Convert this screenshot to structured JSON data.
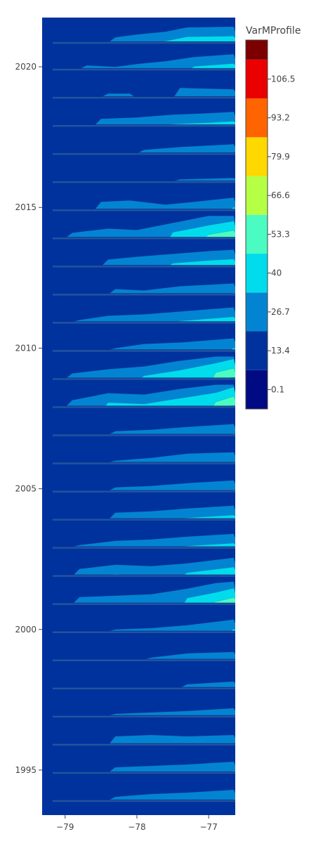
{
  "chart_data": {
    "type": "contour",
    "title": "",
    "xlabel": "",
    "ylabel": "",
    "colorbar_title": "VarMProfile",
    "xlim": [
      -79.32,
      -76.63
    ],
    "ylim": [
      1993.4,
      2021.75
    ],
    "x_ticks": [
      {
        "value": -79,
        "label": "−79"
      },
      {
        "value": -78,
        "label": "−78"
      },
      {
        "value": -77,
        "label": "−77"
      }
    ],
    "y_ticks": [
      {
        "value": 1995,
        "label": "1995"
      },
      {
        "value": 2000,
        "label": "2000"
      },
      {
        "value": 2005,
        "label": "2005"
      },
      {
        "value": 2010,
        "label": "2010"
      },
      {
        "value": 2015,
        "label": "2015"
      },
      {
        "value": 2020,
        "label": "2020"
      }
    ],
    "colorscale": {
      "min": -6.55,
      "max": 119.85,
      "ticks": [
        {
          "value": 0.1,
          "label": "0.1"
        },
        {
          "value": 13.4,
          "label": "13.4"
        },
        {
          "value": 26.7,
          "label": "26.7"
        },
        {
          "value": 40,
          "label": "40"
        },
        {
          "value": 53.3,
          "label": "53.3"
        },
        {
          "value": 66.6,
          "label": "66.6"
        },
        {
          "value": 79.9,
          "label": "79.9"
        },
        {
          "value": 93.2,
          "label": "93.2"
        },
        {
          "value": 106.5,
          "label": "106.5"
        }
      ],
      "bins": [
        {
          "from": -6.55,
          "to": 6.75,
          "color": "#000a82"
        },
        {
          "from": 6.75,
          "to": 20.05,
          "color": "#00329e"
        },
        {
          "from": 20.05,
          "to": 33.35,
          "color": "#0384d2"
        },
        {
          "from": 33.35,
          "to": 46.65,
          "color": "#00dcec"
        },
        {
          "from": 46.65,
          "to": 59.95,
          "color": "#4afcc2"
        },
        {
          "from": 59.95,
          "to": 73.25,
          "color": "#b5ff45"
        },
        {
          "from": 73.25,
          "to": 86.55,
          "color": "#ffd800"
        },
        {
          "from": 86.55,
          "to": 99.85,
          "color": "#ff6400"
        },
        {
          "from": 99.85,
          "to": 113.15,
          "color": "#eb0000"
        },
        {
          "from": 113.15,
          "to": 119.85,
          "color": "#7d0000"
        }
      ]
    },
    "bands": [
      {
        "year": 2021.35,
        "level1": [
          [
            -79.3,
            14
          ],
          [
            -79,
            14
          ],
          [
            -78.6,
            20
          ],
          [
            -78.3,
            26
          ],
          [
            -78,
            30
          ],
          [
            -77.6,
            34
          ],
          [
            -77.3,
            40
          ],
          [
            -76.65,
            41
          ]
        ]
      },
      {
        "year": 2020.4,
        "level1": [
          [
            -79.3,
            14
          ],
          [
            -79,
            18
          ],
          [
            -78.7,
            24
          ],
          [
            -78.3,
            22
          ],
          [
            -78,
            26
          ],
          [
            -77.6,
            30
          ],
          [
            -77.2,
            36
          ],
          [
            -76.65,
            40
          ]
        ]
      },
      {
        "year": 2019.4,
        "level1": [
          [
            -79.3,
            12
          ],
          [
            -78.8,
            16
          ],
          [
            -78.4,
            24
          ],
          [
            -78.1,
            24
          ],
          [
            -77.8,
            20
          ],
          [
            -77.4,
            32
          ],
          [
            -76.65,
            30
          ]
        ]
      },
      {
        "year": 2018.4,
        "level1": [
          [
            -79.3,
            14
          ],
          [
            -78.9,
            20
          ],
          [
            -78.5,
            28
          ],
          [
            -78.0,
            30
          ],
          [
            -77.5,
            34
          ],
          [
            -77.0,
            36
          ],
          [
            -76.65,
            38
          ]
        ]
      },
      {
        "year": 2017.4,
        "level1": [
          [
            -79.3,
            12
          ],
          [
            -78.8,
            14
          ],
          [
            -78.3,
            18
          ],
          [
            -77.9,
            24
          ],
          [
            -77.4,
            28
          ],
          [
            -76.65,
            32
          ]
        ]
      },
      {
        "year": 2016.4,
        "level1": [
          [
            -79.3,
            10
          ],
          [
            -78.8,
            12
          ],
          [
            -78.3,
            14
          ],
          [
            -77.9,
            18
          ],
          [
            -77.4,
            22
          ],
          [
            -76.65,
            24
          ]
        ]
      },
      {
        "year": 2015.4,
        "level1": [
          [
            -79.3,
            14
          ],
          [
            -78.9,
            20
          ],
          [
            -78.5,
            30
          ],
          [
            -78.1,
            32
          ],
          [
            -77.6,
            26
          ],
          [
            -77.2,
            30
          ],
          [
            -76.65,
            36
          ]
        ]
      },
      {
        "year": 2014.4,
        "level1": [
          [
            -79.3,
            18
          ],
          [
            -78.9,
            26
          ],
          [
            -78.4,
            32
          ],
          [
            -78.0,
            30
          ],
          [
            -77.5,
            40
          ],
          [
            -77.0,
            50
          ],
          [
            -76.65,
            56
          ]
        ]
      },
      {
        "year": 2013.4,
        "level1": [
          [
            -79.3,
            14
          ],
          [
            -78.9,
            20
          ],
          [
            -78.4,
            28
          ],
          [
            -78.0,
            32
          ],
          [
            -77.5,
            36
          ],
          [
            -77.0,
            40
          ],
          [
            -76.65,
            42
          ]
        ]
      },
      {
        "year": 2012.4,
        "level1": [
          [
            -79.3,
            14
          ],
          [
            -78.8,
            20
          ],
          [
            -78.3,
            26
          ],
          [
            -77.9,
            24
          ],
          [
            -77.4,
            30
          ],
          [
            -76.65,
            34
          ]
        ]
      },
      {
        "year": 2011.4,
        "level1": [
          [
            -79.3,
            16
          ],
          [
            -78.8,
            22
          ],
          [
            -78.4,
            28
          ],
          [
            -77.9,
            30
          ],
          [
            -77.4,
            34
          ],
          [
            -76.65,
            40
          ]
        ]
      },
      {
        "year": 2010.4,
        "level1": [
          [
            -79.3,
            14
          ],
          [
            -78.8,
            18
          ],
          [
            -78.3,
            22
          ],
          [
            -77.9,
            28
          ],
          [
            -77.4,
            30
          ],
          [
            -76.65,
            36
          ]
        ]
      },
      {
        "year": 2009.4,
        "level1": [
          [
            -79.3,
            18
          ],
          [
            -78.9,
            26
          ],
          [
            -78.4,
            32
          ],
          [
            -77.9,
            36
          ],
          [
            -77.4,
            44
          ],
          [
            -76.9,
            54
          ],
          [
            -76.65,
            60
          ]
        ]
      },
      {
        "year": 2008.4,
        "level1": [
          [
            -79.3,
            18
          ],
          [
            -78.9,
            28
          ],
          [
            -78.4,
            38
          ],
          [
            -77.9,
            36
          ],
          [
            -77.4,
            44
          ],
          [
            -76.9,
            52
          ],
          [
            -76.65,
            60
          ]
        ]
      },
      {
        "year": 2007.4,
        "level1": [
          [
            -79.3,
            14
          ],
          [
            -78.8,
            20
          ],
          [
            -78.3,
            24
          ],
          [
            -77.8,
            26
          ],
          [
            -77.3,
            30
          ],
          [
            -76.65,
            34
          ]
        ]
      },
      {
        "year": 2006.4,
        "level1": [
          [
            -79.3,
            12
          ],
          [
            -78.8,
            16
          ],
          [
            -78.3,
            22
          ],
          [
            -77.8,
            26
          ],
          [
            -77.3,
            32
          ],
          [
            -76.65,
            34
          ]
        ]
      },
      {
        "year": 2005.4,
        "level1": [
          [
            -79.3,
            14
          ],
          [
            -78.8,
            20
          ],
          [
            -78.3,
            24
          ],
          [
            -77.8,
            26
          ],
          [
            -77.3,
            30
          ],
          [
            -76.65,
            34
          ]
        ]
      },
      {
        "year": 2004.4,
        "level1": [
          [
            -79.3,
            14
          ],
          [
            -78.8,
            20
          ],
          [
            -78.3,
            28
          ],
          [
            -77.8,
            30
          ],
          [
            -77.3,
            34
          ],
          [
            -76.65,
            38
          ]
        ]
      },
      {
        "year": 2003.4,
        "level1": [
          [
            -79.3,
            16
          ],
          [
            -78.8,
            22
          ],
          [
            -78.3,
            28
          ],
          [
            -77.8,
            30
          ],
          [
            -77.3,
            34
          ],
          [
            -76.65,
            38
          ]
        ]
      },
      {
        "year": 2002.4,
        "level1": [
          [
            -79.3,
            18
          ],
          [
            -78.8,
            28
          ],
          [
            -78.3,
            34
          ],
          [
            -77.8,
            32
          ],
          [
            -77.3,
            36
          ],
          [
            -76.65,
            44
          ]
        ]
      },
      {
        "year": 2001.4,
        "level1": [
          [
            -79.3,
            18
          ],
          [
            -78.8,
            28
          ],
          [
            -78.3,
            30
          ],
          [
            -77.8,
            32
          ],
          [
            -77.3,
            40
          ],
          [
            -76.9,
            48
          ],
          [
            -76.65,
            54
          ]
        ]
      },
      {
        "year": 2000.4,
        "level1": [
          [
            -79.3,
            12
          ],
          [
            -78.8,
            18
          ],
          [
            -78.3,
            22
          ],
          [
            -77.8,
            24
          ],
          [
            -77.3,
            28
          ],
          [
            -76.65,
            36
          ]
        ]
      },
      {
        "year": 1999.4,
        "level1": [
          [
            -79.3,
            10
          ],
          [
            -78.8,
            14
          ],
          [
            -78.3,
            18
          ],
          [
            -77.8,
            22
          ],
          [
            -77.3,
            28
          ],
          [
            -76.65,
            30
          ]
        ]
      },
      {
        "year": 1998.4,
        "level1": [
          [
            -79.3,
            10
          ],
          [
            -78.8,
            14
          ],
          [
            -78.3,
            18
          ],
          [
            -77.8,
            20
          ],
          [
            -77.3,
            24
          ],
          [
            -76.65,
            28
          ]
        ]
      },
      {
        "year": 1997.4,
        "level1": [
          [
            -79.3,
            12
          ],
          [
            -78.8,
            18
          ],
          [
            -78.3,
            22
          ],
          [
            -77.8,
            24
          ],
          [
            -77.3,
            26
          ],
          [
            -76.65,
            30
          ]
        ]
      },
      {
        "year": 1996.4,
        "level1": [
          [
            -79.3,
            14
          ],
          [
            -78.8,
            20
          ],
          [
            -78.3,
            30
          ],
          [
            -77.8,
            32
          ],
          [
            -77.3,
            30
          ],
          [
            -76.65,
            32
          ]
        ]
      },
      {
        "year": 1995.4,
        "level1": [
          [
            -79.3,
            14
          ],
          [
            -78.8,
            20
          ],
          [
            -78.3,
            26
          ],
          [
            -77.8,
            28
          ],
          [
            -77.3,
            30
          ],
          [
            -76.65,
            34
          ]
        ]
      },
      {
        "year": 1994.4,
        "level1": [
          [
            -79.3,
            14
          ],
          [
            -78.8,
            20
          ],
          [
            -78.3,
            24
          ],
          [
            -77.8,
            28
          ],
          [
            -77.3,
            30
          ],
          [
            -76.65,
            34
          ]
        ]
      }
    ]
  }
}
